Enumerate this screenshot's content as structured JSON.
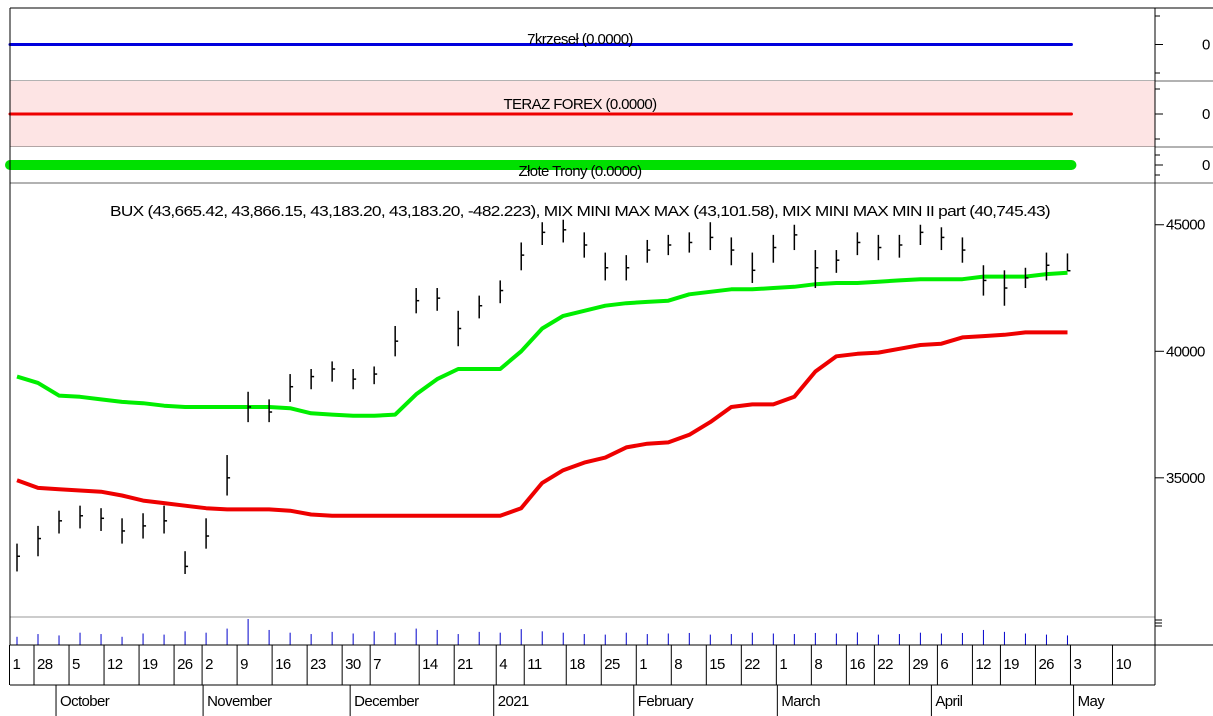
{
  "chart_data": [
    {
      "type": "line",
      "title": "7krzeseł (0.0000)",
      "values": [
        0
      ],
      "color": "#0000dd",
      "background": "#ffffff",
      "ylim": [
        -1,
        1
      ],
      "yticks": [
        0
      ]
    },
    {
      "type": "line",
      "title": "TERAZ FOREX (0.0000)",
      "values": [
        0
      ],
      "color": "#ee0000",
      "background": "#fde4e4",
      "ylim": [
        -1,
        1
      ],
      "yticks": [
        0
      ]
    },
    {
      "type": "line",
      "title": "Złote Trony (0.0000)",
      "values": [
        0
      ],
      "color": "#00e000",
      "background": "#ffffff",
      "ylim": [
        -1,
        1
      ],
      "yticks": [
        0
      ]
    },
    {
      "type": "ohlc",
      "title": "BUX (43,665.42, 43,866.15, 43,183.20, 43,183.20, -482.223), MIX MINI MAX MAX (43,101.58), MIX MINI MAX MIN II part (40,745.43)",
      "color": "#000000",
      "volume_color": "#0000cc",
      "x": [
        1,
        4,
        7,
        10,
        13,
        16,
        19,
        22,
        25,
        28,
        31,
        34,
        37,
        40,
        43,
        46,
        49,
        52,
        55,
        58,
        61,
        64,
        67,
        70,
        73,
        76,
        79,
        82,
        85,
        88,
        91,
        94,
        97,
        100,
        103,
        106,
        109,
        112,
        115,
        118,
        121,
        124,
        127,
        130,
        133,
        136,
        139,
        142,
        145,
        148,
        151
      ],
      "high": [
        32400,
        33100,
        33700,
        33900,
        33800,
        33400,
        33600,
        33900,
        32100,
        33400,
        35900,
        38400,
        38100,
        39100,
        39300,
        39600,
        39300,
        39400,
        41000,
        42500,
        42500,
        41600,
        42200,
        42800,
        44300,
        45100,
        45200,
        44700,
        43900,
        43800,
        44400,
        44600,
        44700,
        45100,
        44500,
        43900,
        44600,
        45000,
        44000,
        44000,
        44700,
        44600,
        44600,
        45000,
        44900,
        44500,
        43400,
        43200,
        43300,
        43900,
        43866.15
      ],
      "low": [
        31300,
        31900,
        32800,
        33000,
        32900,
        32400,
        32600,
        32800,
        31200,
        32200,
        34300,
        37200,
        37200,
        38000,
        38500,
        38800,
        38500,
        38700,
        39800,
        41500,
        41600,
        40200,
        41300,
        41900,
        43200,
        44200,
        44300,
        43700,
        42800,
        42800,
        43500,
        43800,
        43900,
        44000,
        43400,
        42700,
        43500,
        44000,
        42500,
        43100,
        43800,
        43600,
        43700,
        44200,
        44000,
        43500,
        42200,
        41800,
        42500,
        42800,
        43183.2
      ],
      "close": [
        31900,
        32600,
        33300,
        33500,
        33400,
        32900,
        33100,
        33300,
        31500,
        32700,
        35000,
        37800,
        37600,
        38600,
        39000,
        39300,
        38900,
        39100,
        40400,
        42000,
        42100,
        40900,
        41800,
        42400,
        43800,
        44700,
        44800,
        44200,
        43300,
        43300,
        44000,
        44200,
        44300,
        44500,
        44000,
        43200,
        44100,
        44600,
        43300,
        43600,
        44300,
        44100,
        44200,
        44700,
        44500,
        44000,
        42800,
        42500,
        42900,
        43400,
        43183.2
      ],
      "series": [
        {
          "color": "#00ee00",
          "values": [
            39000,
            38750,
            38250,
            38200,
            38100,
            38000,
            37950,
            37850,
            37800,
            37800,
            37800,
            37800,
            37800,
            37750,
            37550,
            37500,
            37450,
            37450,
            37500,
            38300,
            38900,
            39300,
            39300,
            39300,
            40000,
            40900,
            41400,
            41600,
            41800,
            41900,
            41950,
            42000,
            42250,
            42350,
            42450,
            42450,
            42500,
            42550,
            42650,
            42700,
            42700,
            42750,
            42800,
            42850,
            42850,
            42850,
            42950,
            42950,
            42950,
            43050,
            43101.58
          ]
        },
        {
          "color": "#ee0000",
          "values": [
            34900,
            34600,
            34550,
            34500,
            34450,
            34300,
            34100,
            34000,
            33900,
            33800,
            33750,
            33750,
            33750,
            33700,
            33550,
            33500,
            33500,
            33500,
            33500,
            33500,
            33500,
            33500,
            33500,
            33500,
            33800,
            34800,
            35300,
            35600,
            35800,
            36200,
            36350,
            36400,
            36700,
            37200,
            37800,
            37900,
            37900,
            38200,
            39200,
            39800,
            39900,
            39950,
            40100,
            40250,
            40300,
            40550,
            40600,
            40650,
            40745,
            40745,
            40745.43
          ]
        }
      ],
      "volume": [
        30,
        40,
        35,
        45,
        40,
        30,
        42,
        38,
        50,
        45,
        60,
        95,
        55,
        45,
        40,
        48,
        42,
        50,
        45,
        60,
        55,
        40,
        48,
        45,
        58,
        50,
        45,
        40,
        38,
        45,
        40,
        42,
        44,
        38,
        40,
        45,
        42,
        40,
        44,
        42,
        46,
        38,
        40,
        45,
        42,
        44,
        55,
        48,
        42,
        38,
        35
      ],
      "xlim": [
        0,
        163.5
      ],
      "xticks": [
        {
          "value": 0.5,
          "label": "1"
        },
        {
          "value": 4,
          "label": "28"
        },
        {
          "value": 9,
          "label": "5"
        },
        {
          "value": 14,
          "label": "12"
        },
        {
          "value": 19,
          "label": "19"
        },
        {
          "value": 24,
          "label": "26"
        },
        {
          "value": 28,
          "label": "2"
        },
        {
          "value": 33,
          "label": "9"
        },
        {
          "value": 38,
          "label": "16"
        },
        {
          "value": 43,
          "label": "23"
        },
        {
          "value": 48,
          "label": "30"
        },
        {
          "value": 52,
          "label": "7"
        },
        {
          "value": 59,
          "label": "14"
        },
        {
          "value": 64,
          "label": "21"
        },
        {
          "value": 70,
          "label": "4"
        },
        {
          "value": 74,
          "label": "11"
        },
        {
          "value": 80,
          "label": "18"
        },
        {
          "value": 85,
          "label": "25"
        },
        {
          "value": 90,
          "label": "1"
        },
        {
          "value": 95,
          "label": "8"
        },
        {
          "value": 100,
          "label": "15"
        },
        {
          "value": 105,
          "label": "22"
        },
        {
          "value": 110,
          "label": "1"
        },
        {
          "value": 115,
          "label": "8"
        },
        {
          "value": 120,
          "label": "16"
        },
        {
          "value": 124,
          "label": "22"
        },
        {
          "value": 129,
          "label": "29"
        },
        {
          "value": 133,
          "label": "6"
        },
        {
          "value": 138,
          "label": "12"
        },
        {
          "value": 142,
          "label": "19"
        },
        {
          "value": 147,
          "label": "26"
        },
        {
          "value": 152,
          "label": "3"
        },
        {
          "value": 158,
          "label": "10"
        }
      ],
      "month_ticks": [
        {
          "value": 7,
          "label": "October"
        },
        {
          "value": 28,
          "label": "November"
        },
        {
          "value": 49,
          "label": "December"
        },
        {
          "value": 69.5,
          "label": "2021"
        },
        {
          "value": 89.5,
          "label": "February"
        },
        {
          "value": 110,
          "label": "March"
        },
        {
          "value": 132,
          "label": "April"
        },
        {
          "value": 152.3,
          "label": "May"
        }
      ],
      "ylim": [
        29500,
        46650
      ],
      "yticks": [
        35000,
        40000,
        45000
      ]
    }
  ]
}
